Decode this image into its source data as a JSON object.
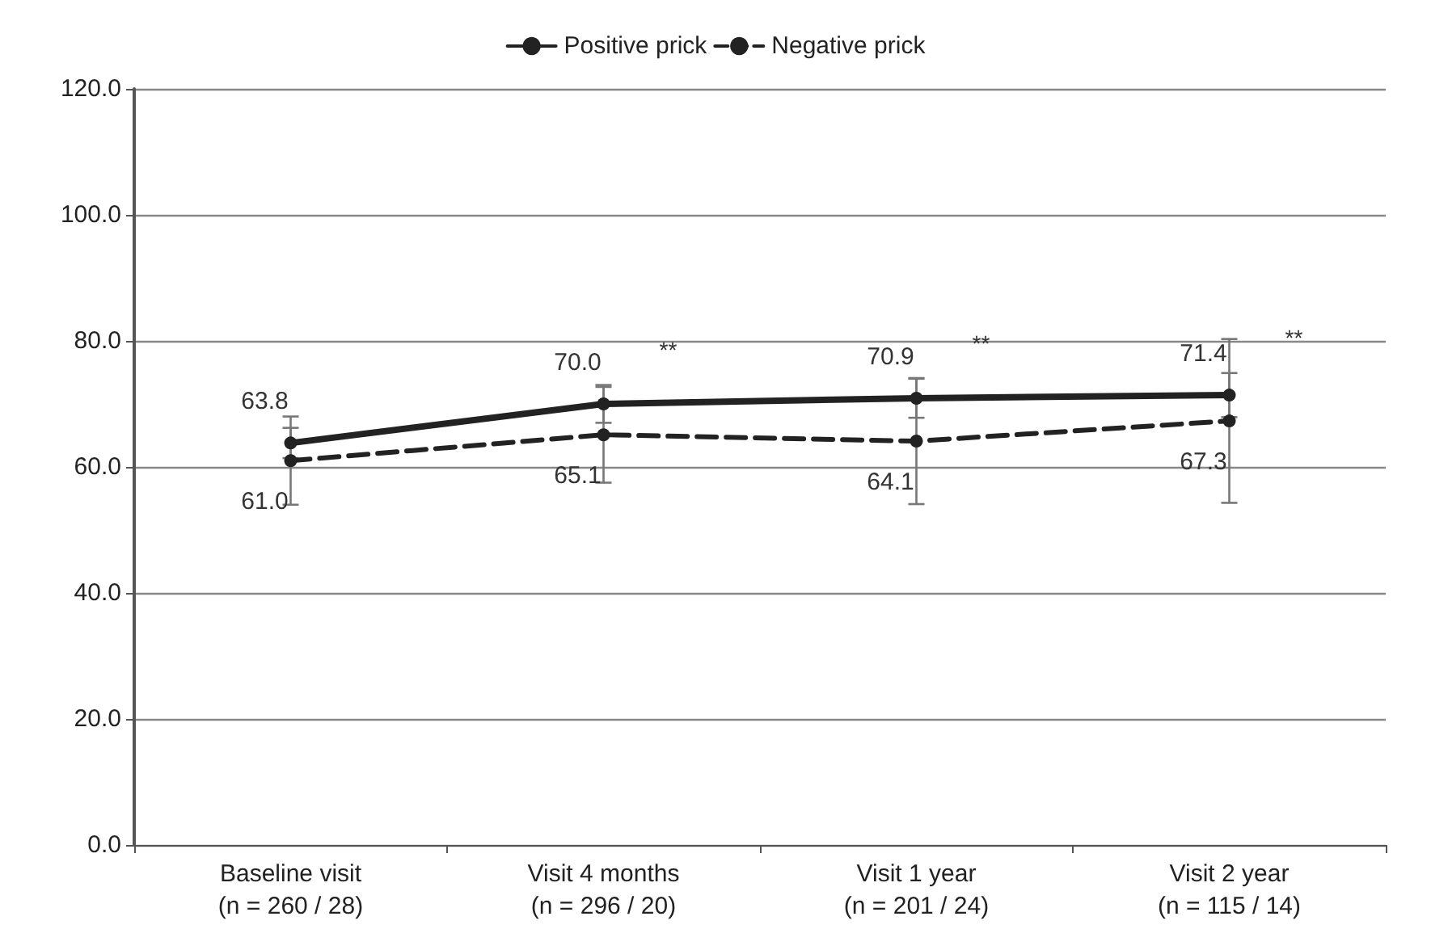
{
  "chart_data": {
    "type": "line",
    "categories": [
      "Baseline visit\n(n = 260 / 28)",
      "Visit 4 months\n(n = 296 / 20)",
      "Visit 1 year\n(n = 201 / 24)",
      "Visit 2 year\n(n = 115 / 14)"
    ],
    "series": [
      {
        "name": "Positive prick",
        "color": "#222222",
        "values": [
          63.8,
          70.0,
          70.9,
          71.4
        ],
        "value_labels": [
          "63.8",
          "70.0",
          "70.9",
          "71.4"
        ],
        "errors": [
          2.4,
          3.0,
          3.1,
          3.5
        ],
        "line_style": "solid"
      },
      {
        "name": "Negative prick",
        "color": "#222222",
        "values": [
          61.0,
          65.1,
          64.1,
          67.3
        ],
        "value_labels": [
          "61.0",
          "65.1",
          "64.1",
          "67.3"
        ],
        "errors": [
          7.0,
          7.6,
          10.0,
          13.0
        ],
        "line_style": "dashed"
      }
    ],
    "ylim": [
      0,
      120
    ],
    "yticks": [
      {
        "value": 0,
        "label": "0.0"
      },
      {
        "value": 20,
        "label": "20.0"
      },
      {
        "value": 40,
        "label": "40.0"
      },
      {
        "value": 60,
        "label": "60.0"
      },
      {
        "value": 80,
        "label": "80.0"
      },
      {
        "value": 100,
        "label": "100.0"
      },
      {
        "value": 120,
        "label": "120.0"
      }
    ],
    "grid": "y",
    "legend": "top",
    "marker": "circle",
    "annotations": [
      "**",
      "**",
      "**"
    ]
  }
}
